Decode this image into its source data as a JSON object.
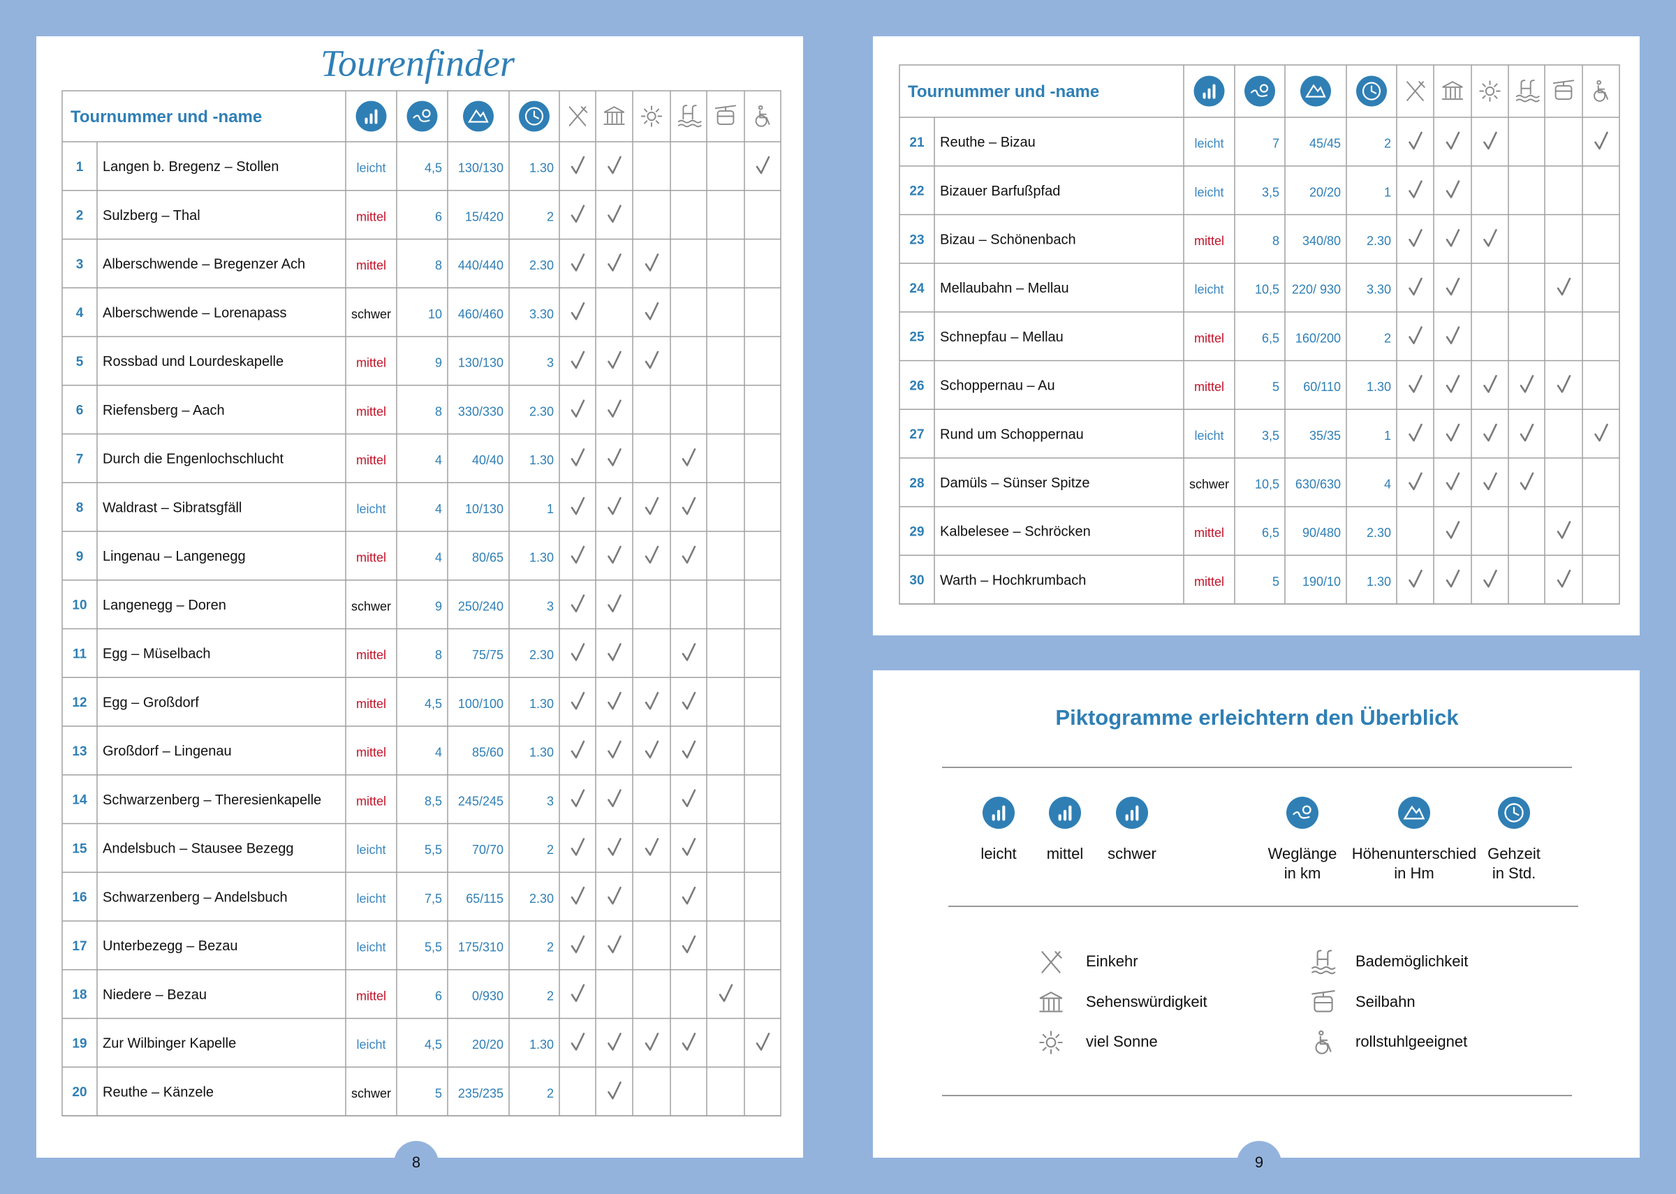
{
  "level_colors": {
    "leicht": "#3a87c0",
    "mittel": "#c0142a",
    "schwer": "#111111"
  },
  "left_page": {
    "title": "Tourenfinder",
    "page_number": "8",
    "table": {
      "header": "Tournummer und -name",
      "rows": [
        {
          "nr": "1",
          "name": "Langen b. Bregenz – Stollen",
          "level": "leicht",
          "km": "4,5",
          "hm": "130/130",
          "h": "1.30",
          "checks": [
            true,
            true,
            false,
            false,
            false,
            true
          ]
        },
        {
          "nr": "2",
          "name": "Sulzberg – Thal",
          "level": "mittel",
          "km": "6",
          "hm": "15/420",
          "h": "2",
          "checks": [
            true,
            true,
            false,
            false,
            false,
            false
          ]
        },
        {
          "nr": "3",
          "name": "Alberschwende – Bregenzer Ach",
          "level": "mittel",
          "km": "8",
          "hm": "440/440",
          "h": "2.30",
          "checks": [
            true,
            true,
            true,
            false,
            false,
            false
          ]
        },
        {
          "nr": "4",
          "name": "Alberschwende – Lorenapass",
          "level": "schwer",
          "km": "10",
          "hm": "460/460",
          "h": "3.30",
          "checks": [
            true,
            false,
            true,
            false,
            false,
            false
          ]
        },
        {
          "nr": "5",
          "name": "Rossbad und Lourdeskapelle",
          "level": "mittel",
          "km": "9",
          "hm": "130/130",
          "h": "3",
          "checks": [
            true,
            true,
            true,
            false,
            false,
            false
          ]
        },
        {
          "nr": "6",
          "name": "Riefensberg – Aach",
          "level": "mittel",
          "km": "8",
          "hm": "330/330",
          "h": "2.30",
          "checks": [
            true,
            true,
            false,
            false,
            false,
            false
          ]
        },
        {
          "nr": "7",
          "name": "Durch die Engenlochschlucht",
          "level": "mittel",
          "km": "4",
          "hm": "40/40",
          "h": "1.30",
          "checks": [
            true,
            true,
            false,
            true,
            false,
            false
          ]
        },
        {
          "nr": "8",
          "name": "Waldrast – Sibratsgfäll",
          "level": "leicht",
          "km": "4",
          "hm": "10/130",
          "h": "1",
          "checks": [
            true,
            true,
            true,
            true,
            false,
            false
          ]
        },
        {
          "nr": "9",
          "name": "Lingenau – Langenegg",
          "level": "mittel",
          "km": "4",
          "hm": "80/65",
          "h": "1.30",
          "checks": [
            true,
            true,
            true,
            true,
            false,
            false
          ]
        },
        {
          "nr": "10",
          "name": "Langenegg – Doren",
          "level": "schwer",
          "km": "9",
          "hm": "250/240",
          "h": "3",
          "checks": [
            true,
            true,
            false,
            false,
            false,
            false
          ]
        },
        {
          "nr": "11",
          "name": "Egg – Müselbach",
          "level": "mittel",
          "km": "8",
          "hm": "75/75",
          "h": "2.30",
          "checks": [
            true,
            true,
            false,
            true,
            false,
            false
          ]
        },
        {
          "nr": "12",
          "name": "Egg – Großdorf",
          "level": "mittel",
          "km": "4,5",
          "hm": "100/100",
          "h": "1.30",
          "checks": [
            true,
            true,
            true,
            true,
            false,
            false
          ]
        },
        {
          "nr": "13",
          "name": "Großdorf – Lingenau",
          "level": "mittel",
          "km": "4",
          "hm": "85/60",
          "h": "1.30",
          "checks": [
            true,
            true,
            true,
            true,
            false,
            false
          ]
        },
        {
          "nr": "14",
          "name": "Schwarzenberg – Theresienkapelle",
          "level": "mittel",
          "km": "8,5",
          "hm": "245/245",
          "h": "3",
          "checks": [
            true,
            true,
            false,
            true,
            false,
            false
          ]
        },
        {
          "nr": "15",
          "name": "Andelsbuch – Stausee Bezegg",
          "level": "leicht",
          "km": "5,5",
          "hm": "70/70",
          "h": "2",
          "checks": [
            true,
            true,
            true,
            true,
            false,
            false
          ]
        },
        {
          "nr": "16",
          "name": "Schwarzenberg – Andelsbuch",
          "level": "leicht",
          "km": "7,5",
          "hm": "65/115",
          "h": "2.30",
          "checks": [
            true,
            true,
            false,
            true,
            false,
            false
          ]
        },
        {
          "nr": "17",
          "name": "Unterbezegg – Bezau",
          "level": "leicht",
          "km": "5,5",
          "hm": "175/310",
          "h": "2",
          "checks": [
            true,
            true,
            false,
            true,
            false,
            false
          ]
        },
        {
          "nr": "18",
          "name": "Niedere – Bezau",
          "level": "mittel",
          "km": "6",
          "hm": "0/930",
          "h": "2",
          "checks": [
            true,
            false,
            false,
            false,
            true,
            false
          ]
        },
        {
          "nr": "19",
          "name": "Zur Wilbinger Kapelle",
          "level": "leicht",
          "km": "4,5",
          "hm": "20/20",
          "h": "1.30",
          "checks": [
            true,
            true,
            true,
            true,
            false,
            true
          ]
        },
        {
          "nr": "20",
          "name": "Reuthe – Känzele",
          "level": "schwer",
          "km": "5",
          "hm": "235/235",
          "h": "2",
          "checks": [
            false,
            true,
            false,
            false,
            false,
            false
          ]
        }
      ]
    }
  },
  "right_page": {
    "page_number": "9",
    "table": {
      "header": "Tournummer und -name",
      "rows": [
        {
          "nr": "21",
          "name": "Reuthe – Bizau",
          "level": "leicht",
          "km": "7",
          "hm": "45/45",
          "h": "2",
          "checks": [
            true,
            true,
            true,
            false,
            false,
            true
          ]
        },
        {
          "nr": "22",
          "name": "Bizauer Barfußpfad",
          "level": "leicht",
          "km": "3,5",
          "hm": "20/20",
          "h": "1",
          "checks": [
            true,
            true,
            false,
            false,
            false,
            false
          ]
        },
        {
          "nr": "23",
          "name": "Bizau – Schönenbach",
          "level": "mittel",
          "km": "8",
          "hm": "340/80",
          "h": "2.30",
          "checks": [
            true,
            true,
            true,
            false,
            false,
            false
          ]
        },
        {
          "nr": "24",
          "name": "Mellaubahn – Mellau",
          "level": "leicht",
          "km": "10,5",
          "hm": "220/ 930",
          "h": "3.30",
          "checks": [
            true,
            true,
            false,
            false,
            true,
            false
          ]
        },
        {
          "nr": "25",
          "name": "Schnepfau – Mellau",
          "level": "mittel",
          "km": "6,5",
          "hm": "160/200",
          "h": "2",
          "checks": [
            true,
            true,
            false,
            false,
            false,
            false
          ]
        },
        {
          "nr": "26",
          "name": "Schoppernau – Au",
          "level": "mittel",
          "km": "5",
          "hm": "60/110",
          "h": "1.30",
          "checks": [
            true,
            true,
            true,
            true,
            true,
            false
          ]
        },
        {
          "nr": "27",
          "name": "Rund um Schoppernau",
          "level": "leicht",
          "km": "3,5",
          "hm": "35/35",
          "h": "1",
          "checks": [
            true,
            true,
            true,
            true,
            false,
            true
          ]
        },
        {
          "nr": "28",
          "name": "Damüls – Sünser Spitze",
          "level": "schwer",
          "km": "10,5",
          "hm": "630/630",
          "h": "4",
          "checks": [
            true,
            true,
            true,
            true,
            false,
            false
          ]
        },
        {
          "nr": "29",
          "name": "Kalbelesee – Schröcken",
          "level": "mittel",
          "km": "6,5",
          "hm": "90/480",
          "h": "2.30",
          "checks": [
            false,
            true,
            false,
            false,
            true,
            false
          ]
        },
        {
          "nr": "30",
          "name": "Warth – Hochkrumbach",
          "level": "mittel",
          "km": "5",
          "hm": "190/10",
          "h": "1.30",
          "checks": [
            true,
            true,
            true,
            false,
            true,
            false
          ]
        }
      ]
    },
    "legend": {
      "title": "Piktogramme erleichtern den Überblick",
      "difficulty": [
        "leicht",
        "mittel",
        "schwer"
      ],
      "measures": [
        [
          "Weglänge",
          "in km"
        ],
        [
          "Höhenunterschied",
          "in Hm"
        ],
        [
          "Gehzeit",
          "in Std."
        ]
      ],
      "features": [
        "Einkehr",
        "Sehenswürdigkeit",
        "viel Sonne",
        "Bademöglichkeit",
        "Seilbahn",
        "rollstuhlgeeignet"
      ]
    }
  }
}
